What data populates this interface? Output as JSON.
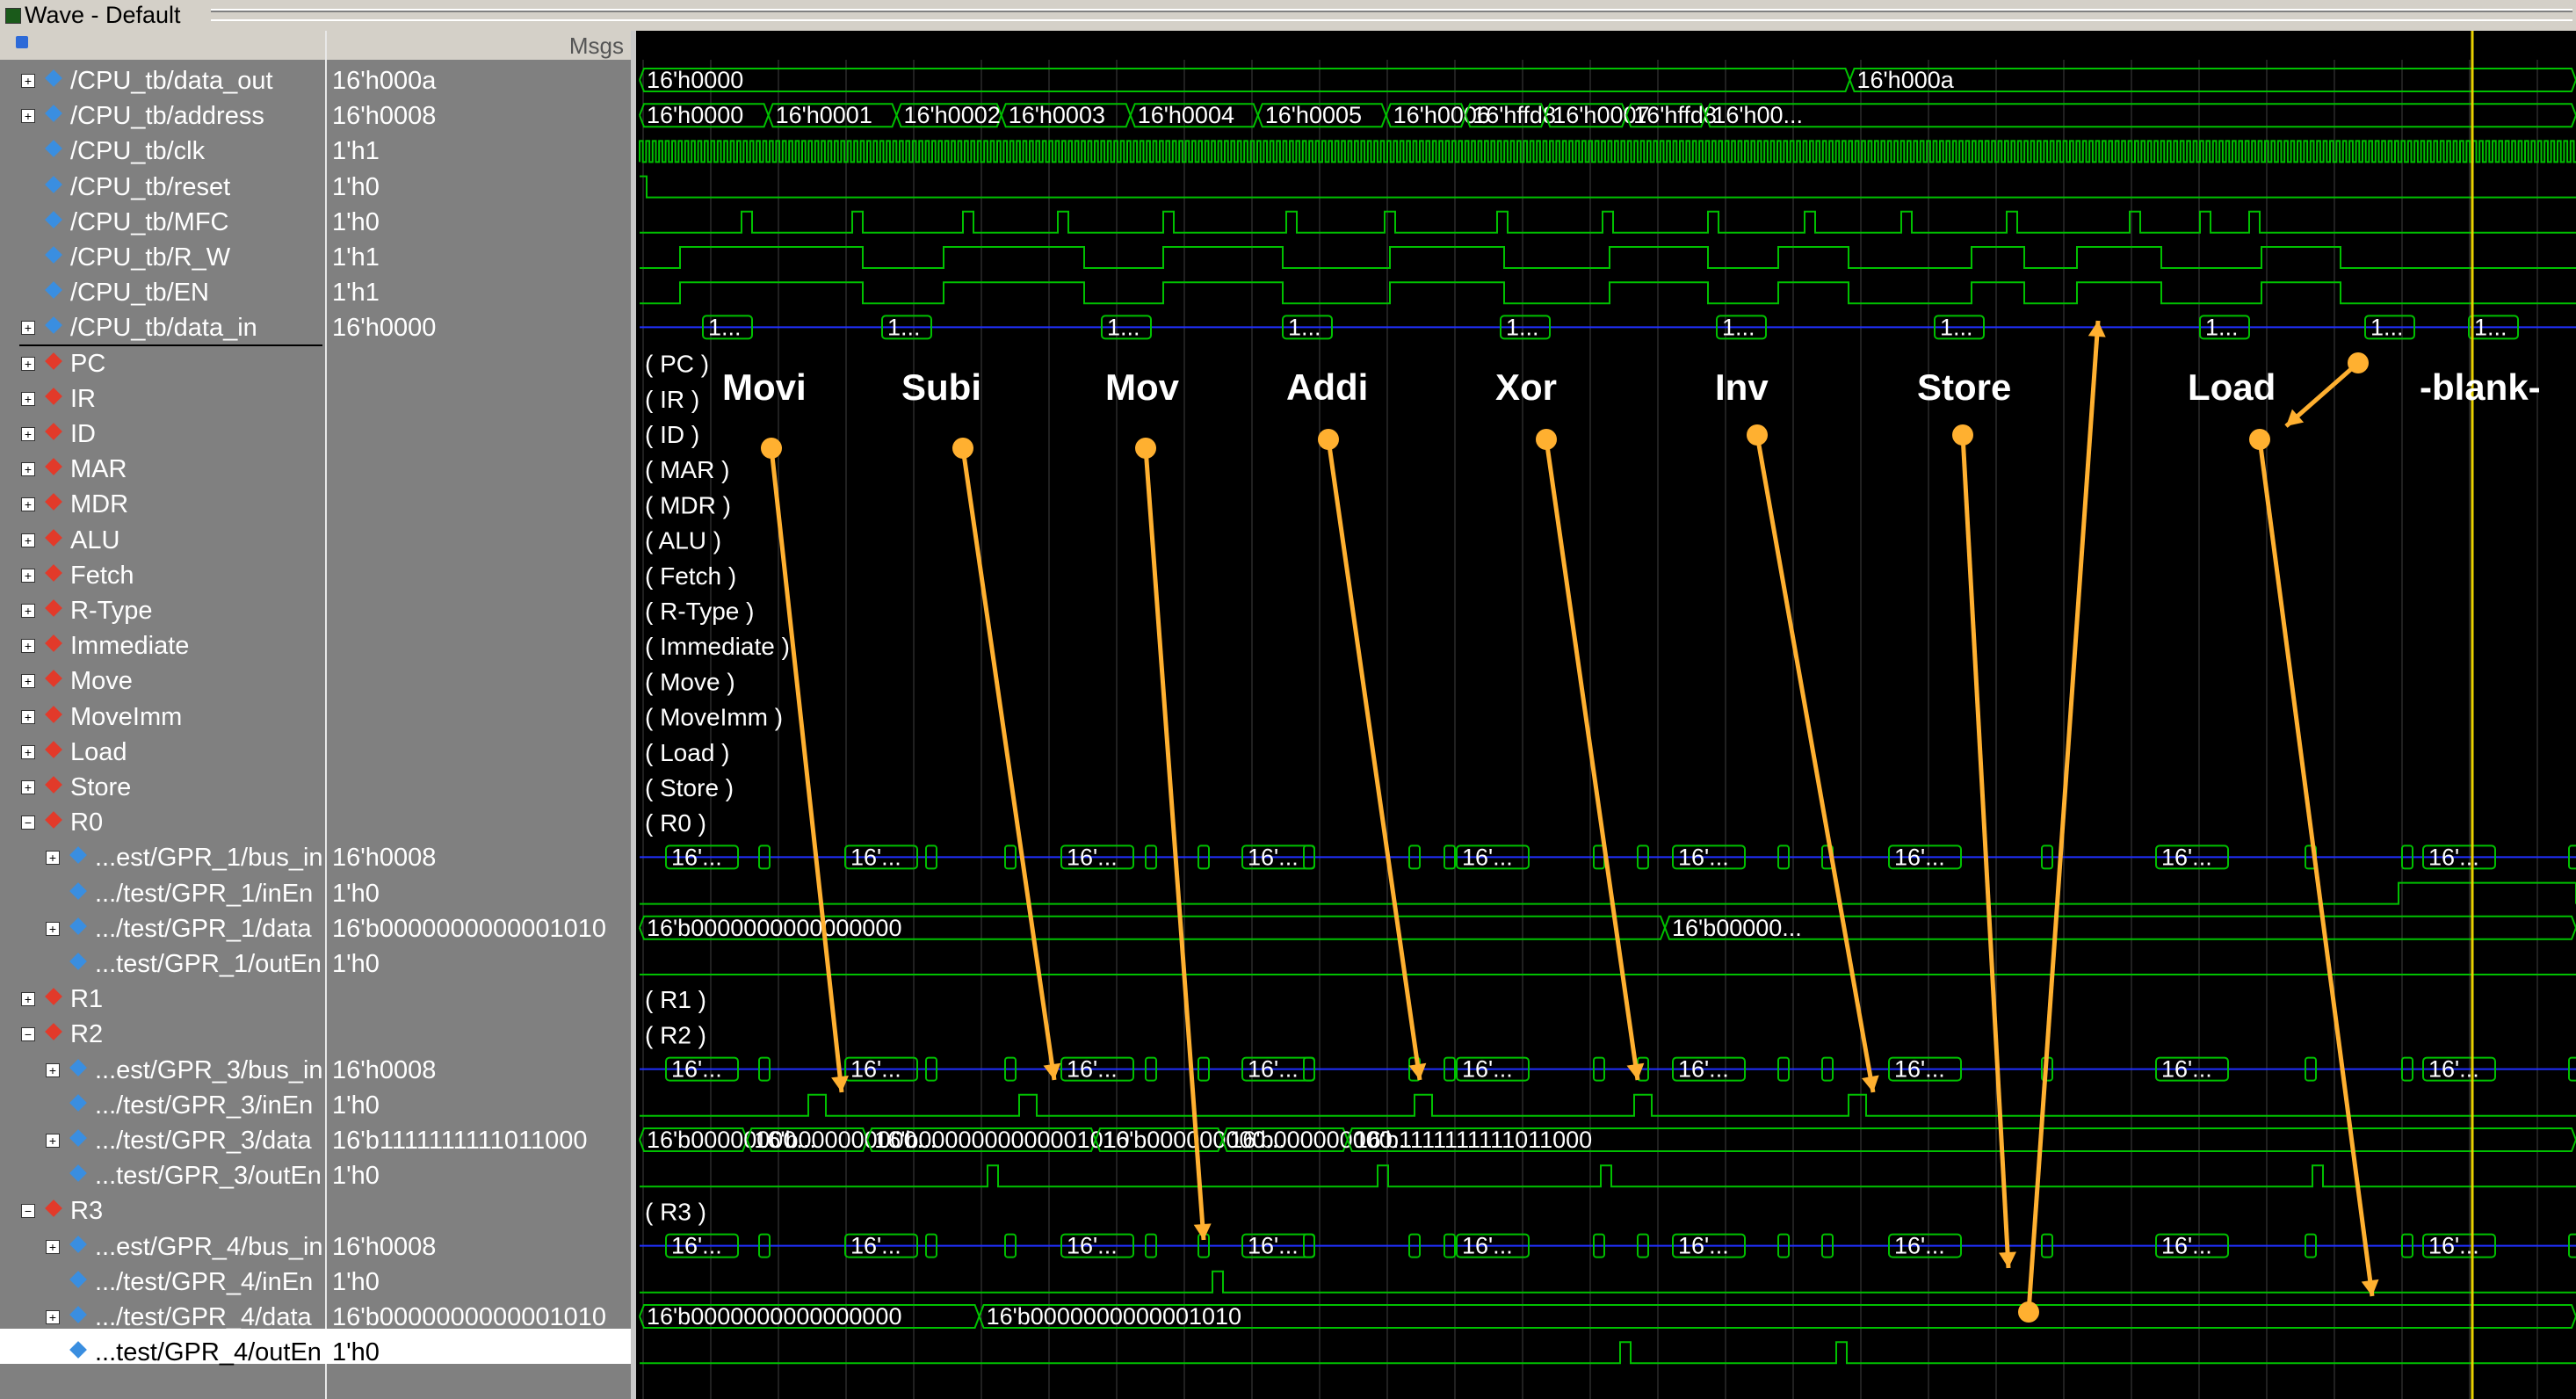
{
  "window": {
    "title": "Wave - Default"
  },
  "header": {
    "values_col": "Msgs"
  },
  "signals": [
    {
      "name": "/CPU_tb/data_out",
      "value": "16'h000a",
      "type": "blue",
      "indent": 0,
      "exp": true
    },
    {
      "name": "/CPU_tb/address",
      "value": "16'h0008",
      "type": "blue",
      "indent": 0,
      "exp": true
    },
    {
      "name": "/CPU_tb/clk",
      "value": "1'h1",
      "type": "blue",
      "indent": 0,
      "exp": false
    },
    {
      "name": "/CPU_tb/reset",
      "value": "1'h0",
      "type": "blue",
      "indent": 0,
      "exp": false
    },
    {
      "name": "/CPU_tb/MFC",
      "value": "1'h0",
      "type": "blue",
      "indent": 0,
      "exp": false
    },
    {
      "name": "/CPU_tb/R_W",
      "value": "1'h1",
      "type": "blue",
      "indent": 0,
      "exp": false
    },
    {
      "name": "/CPU_tb/EN",
      "value": "1'h1",
      "type": "blue",
      "indent": 0,
      "exp": false
    },
    {
      "name": "/CPU_tb/data_in",
      "value": "16'h0000",
      "type": "blue",
      "indent": 0,
      "exp": true
    },
    {
      "name": "PC",
      "value": "",
      "type": "red",
      "indent": 0,
      "exp": true
    },
    {
      "name": "IR",
      "value": "",
      "type": "red",
      "indent": 0,
      "exp": true
    },
    {
      "name": "ID",
      "value": "",
      "type": "red",
      "indent": 0,
      "exp": true
    },
    {
      "name": "MAR",
      "value": "",
      "type": "red",
      "indent": 0,
      "exp": true
    },
    {
      "name": "MDR",
      "value": "",
      "type": "red",
      "indent": 0,
      "exp": true
    },
    {
      "name": "ALU",
      "value": "",
      "type": "red",
      "indent": 0,
      "exp": true
    },
    {
      "name": "Fetch",
      "value": "",
      "type": "red",
      "indent": 0,
      "exp": true
    },
    {
      "name": "R-Type",
      "value": "",
      "type": "red",
      "indent": 0,
      "exp": true
    },
    {
      "name": "Immediate",
      "value": "",
      "type": "red",
      "indent": 0,
      "exp": true
    },
    {
      "name": "Move",
      "value": "",
      "type": "red",
      "indent": 0,
      "exp": true
    },
    {
      "name": "MoveImm",
      "value": "",
      "type": "red",
      "indent": 0,
      "exp": true
    },
    {
      "name": "Load",
      "value": "",
      "type": "red",
      "indent": 0,
      "exp": true
    },
    {
      "name": "Store",
      "value": "",
      "type": "red",
      "indent": 0,
      "exp": true
    },
    {
      "name": "R0",
      "value": "",
      "type": "red",
      "indent": 0,
      "exp": true
    },
    {
      "name": "...est/GPR_1/bus_in",
      "value": "16'h0008",
      "type": "blue",
      "indent": 1,
      "exp": true
    },
    {
      "name": ".../test/GPR_1/inEn",
      "value": "1'h0",
      "type": "blue",
      "indent": 1,
      "exp": false
    },
    {
      "name": ".../test/GPR_1/data",
      "value": "16'b0000000000001010",
      "type": "blue",
      "indent": 1,
      "exp": true
    },
    {
      "name": "...test/GPR_1/outEn",
      "value": "1'h0",
      "type": "blue",
      "indent": 1,
      "exp": false
    },
    {
      "name": "R1",
      "value": "",
      "type": "red",
      "indent": 0,
      "exp": true
    },
    {
      "name": "R2",
      "value": "",
      "type": "red",
      "indent": 0,
      "exp": true
    },
    {
      "name": "...est/GPR_3/bus_in",
      "value": "16'h0008",
      "type": "blue",
      "indent": 1,
      "exp": true
    },
    {
      "name": ".../test/GPR_3/inEn",
      "value": "1'h0",
      "type": "blue",
      "indent": 1,
      "exp": false
    },
    {
      "name": ".../test/GPR_3/data",
      "value": "16'b1111111111011000",
      "type": "blue",
      "indent": 1,
      "exp": true
    },
    {
      "name": "...test/GPR_3/outEn",
      "value": "1'h0",
      "type": "blue",
      "indent": 1,
      "exp": false
    },
    {
      "name": "R3",
      "value": "",
      "type": "red",
      "indent": 0,
      "exp": true
    },
    {
      "name": "...est/GPR_4/bus_in",
      "value": "16'h0008",
      "type": "blue",
      "indent": 1,
      "exp": true
    },
    {
      "name": ".../test/GPR_4/inEn",
      "value": "1'h0",
      "type": "blue",
      "indent": 1,
      "exp": false
    },
    {
      "name": ".../test/GPR_4/data",
      "value": "16'b0000000000001010",
      "type": "blue",
      "indent": 1,
      "exp": true
    },
    {
      "name": "...test/GPR_4/outEn",
      "value": "1'h0",
      "type": "blue",
      "indent": 1,
      "exp": false
    }
  ],
  "wave": {
    "data_out": [
      [
        "16'h0000",
        0
      ],
      [
        "16'h000a",
        0.625
      ]
    ],
    "address": [
      [
        "16'h0000",
        0
      ],
      [
        "16'h0001",
        0.0665
      ],
      [
        "16'h0002",
        0.1327
      ],
      [
        "16'h0003",
        0.1868
      ],
      [
        "16'h0004",
        0.2535
      ],
      [
        "16'h0005",
        0.3193
      ],
      [
        "16'h0006",
        0.3855
      ],
      [
        "16'hffd8",
        0.4266
      ],
      [
        "16'h0007",
        0.4679
      ],
      [
        "16'hffd8",
        0.5096
      ],
      [
        "16'h00...",
        0.5505
      ]
    ],
    "data_in_label": "1...",
    "group_labels": [
      "( PC )",
      "( IR )",
      "( ID )",
      "( MAR )",
      "( MDR )",
      "( ALU )",
      "( Fetch )",
      "( R-Type )",
      "( Immediate )",
      "( Move )",
      "( MoveImm )",
      "( Load )",
      "( Store )",
      "( R0 )",
      "( R1 )",
      "( R2 )",
      "( R3 )"
    ],
    "bus_label": "16'...",
    "gpr1_data": [
      [
        "16'b0000000000000000",
        0
      ],
      [
        "16'b00000...",
        0.5295
      ]
    ],
    "gpr3_data": [
      [
        "16'b00000000...",
        0
      ],
      [
        "16'b000000000...",
        0.0555
      ],
      [
        "16'b0000000000001010",
        0.1176
      ],
      [
        "16'b000000000...",
        0.2355
      ],
      [
        "16'b000000000...",
        0.301
      ],
      [
        "16'b1111111111011000",
        0.3656
      ]
    ],
    "gpr4_data": [
      [
        "16'b0000000000000000",
        0
      ],
      [
        "16'b0000000000001010",
        0.1754
      ]
    ]
  },
  "annotations": [
    "Movi",
    "Subi",
    "Mov",
    "Addi",
    "Xor",
    "Inv",
    "Store",
    "Load",
    "-blank-"
  ],
  "colors": {
    "wave": "#00c000",
    "bus": "#2030ff",
    "cursor": "#e8d000",
    "arrow": "#ffb030",
    "grid": "#404040"
  }
}
